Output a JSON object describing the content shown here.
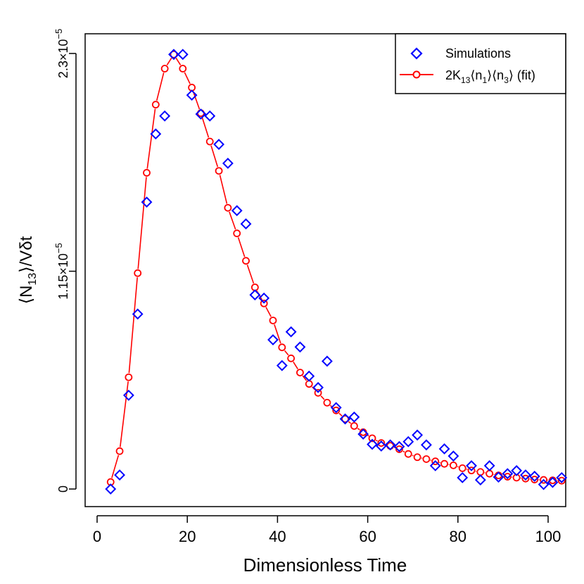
{
  "chart_data": {
    "type": "scatter",
    "xlabel": "Dimensionless Time",
    "ylabel": "⟨N13⟩/Vδt",
    "ylabel_parts": {
      "left": "⟨N",
      "sub": "13",
      "right": "⟩/Vδt"
    },
    "xlim": [
      0,
      103
    ],
    "ylim": [
      0,
      2.3e-05
    ],
    "x_ticks": [
      0,
      20,
      40,
      60,
      80,
      100
    ],
    "x_tick_labels": [
      "0",
      "20",
      "40",
      "60",
      "80",
      "100"
    ],
    "y_ticks": [
      0,
      1.15e-05,
      2.3e-05
    ],
    "y_tick_labels": [
      {
        "mantissa": "0",
        "exponent": ""
      },
      {
        "mantissa": "1.15×10",
        "exponent": "−5"
      },
      {
        "mantissa": "2.3×10",
        "exponent": "−5"
      }
    ],
    "legend_position": "top-right",
    "series": [
      {
        "name": "Simulations",
        "legend_label": "Simulations",
        "marker": "diamond",
        "color": "#0000ff",
        "x": [
          3,
          5,
          7,
          9,
          11,
          13,
          15,
          17,
          19,
          21,
          23,
          25,
          27,
          29,
          31,
          33,
          35,
          37,
          39,
          41,
          43,
          45,
          47,
          49,
          51,
          53,
          55,
          57,
          59,
          61,
          63,
          65,
          67,
          69,
          71,
          73,
          75,
          77,
          79,
          81,
          83,
          85,
          87,
          89,
          91,
          93,
          95,
          97,
          99,
          101,
          103
        ],
        "y": [
          0.0,
          0.74,
          4.95,
          9.24,
          15.15,
          18.75,
          19.7,
          22.95,
          22.95,
          20.8,
          19.8,
          19.7,
          18.2,
          17.2,
          14.7,
          14.0,
          10.25,
          10.08,
          7.88,
          6.52,
          8.3,
          7.5,
          5.96,
          5.36,
          6.75,
          4.3,
          3.7,
          3.8,
          2.9,
          2.36,
          2.27,
          2.33,
          2.24,
          2.5,
          2.85,
          2.33,
          1.23,
          2.12,
          1.74,
          0.6,
          1.23,
          0.48,
          1.23,
          0.63,
          0.81,
          0.97,
          0.74,
          0.67,
          0.24,
          0.35,
          0.6
        ]
      },
      {
        "name": "2K13⟨n1⟩⟨n3⟩ (fit)",
        "legend_label_parts": {
          "a": "2K",
          "b": "13",
          "c": "⟨n",
          "d": "1",
          "e": "⟩⟨n",
          "f": "3",
          "g": "⟩ (fit)"
        },
        "marker": "circle-line",
        "color": "#ff0000",
        "x": [
          3,
          5,
          7,
          9,
          11,
          13,
          15,
          17,
          19,
          21,
          23,
          25,
          27,
          29,
          31,
          33,
          35,
          37,
          39,
          41,
          43,
          45,
          47,
          49,
          51,
          53,
          55,
          57,
          59,
          61,
          63,
          65,
          67,
          69,
          71,
          73,
          75,
          77,
          79,
          81,
          83,
          85,
          87,
          89,
          91,
          93,
          95,
          97,
          99,
          101,
          103
        ],
        "y": [
          0.37,
          2.0,
          5.9,
          11.4,
          16.7,
          20.3,
          22.2,
          22.95,
          22.2,
          21.2,
          19.85,
          18.35,
          16.8,
          14.85,
          13.5,
          12.05,
          10.65,
          9.8,
          8.9,
          7.48,
          6.9,
          6.15,
          5.55,
          5.08,
          4.56,
          4.15,
          3.7,
          3.33,
          3.0,
          2.68,
          2.43,
          2.28,
          2.1,
          1.85,
          1.68,
          1.58,
          1.46,
          1.33,
          1.25,
          1.1,
          0.98,
          0.9,
          0.81,
          0.72,
          0.65,
          0.6,
          0.55,
          0.5,
          0.48,
          0.46,
          0.44
        ]
      }
    ],
    "y_unit_scale": 1e-06
  }
}
